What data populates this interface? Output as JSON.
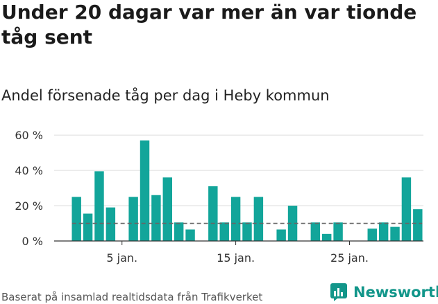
{
  "title": "Under 20 dagar var mer än var tionde tåg sent",
  "subtitle": "Andel försenade tåg per dag i Heby kommun",
  "footer": "Baserat på insamlad realtidsdata från Trafikverket",
  "brand": {
    "name": "Newsworthy",
    "icon": "bar-chart-logo-icon",
    "color": "#12968a"
  },
  "colors": {
    "bar": "#12a59a",
    "reference_line": "#666666",
    "grid": "#dddddd"
  },
  "chart_data": {
    "type": "bar",
    "title": "Andel försenade tåg per dag i Heby kommun",
    "x": [
      1,
      2,
      3,
      4,
      5,
      6,
      7,
      8,
      9,
      10,
      11,
      12,
      13,
      14,
      15,
      16,
      17,
      18,
      19,
      20,
      21,
      22,
      23,
      24,
      25,
      26,
      27,
      28,
      29,
      30,
      31
    ],
    "values": [
      25,
      15.5,
      39.5,
      19,
      null,
      25,
      57,
      26,
      36,
      10.5,
      6.5,
      null,
      31,
      10.5,
      25,
      10.5,
      25,
      null,
      6.5,
      20,
      null,
      10.5,
      4,
      10.5,
      null,
      null,
      7,
      10.5,
      8,
      36,
      18
    ],
    "ylim": [
      0,
      62
    ],
    "yticks": [
      0,
      20,
      40,
      60
    ],
    "ytick_labels": [
      "0 %",
      "20 %",
      "40 %",
      "60 %"
    ],
    "xticks": [
      5,
      15,
      25
    ],
    "xtick_labels": [
      "5 jan.",
      "15 jan.",
      "25 jan."
    ],
    "reference_line": 10,
    "grid": true
  }
}
